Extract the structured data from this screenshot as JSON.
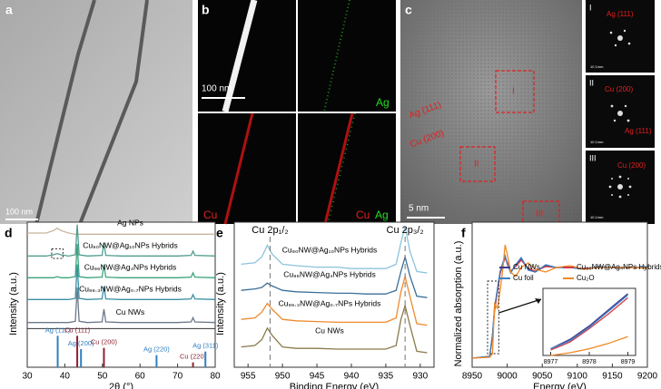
{
  "images": {
    "a": {
      "label": "a",
      "scale": "100 nm"
    },
    "b": {
      "label": "b",
      "scale": "100 nm",
      "channels": [
        "Ag",
        "Cu",
        "Cu",
        "Ag"
      ]
    },
    "c": {
      "label": "c",
      "scale": "5 nm",
      "annotations": [
        "Ag (111)",
        "Cu (200)"
      ],
      "regions": [
        "I",
        "II",
        "III"
      ],
      "insets": [
        {
          "roman": "I",
          "labels": [
            "Ag (111)"
          ],
          "scale": "10 1/nm"
        },
        {
          "roman": "II",
          "labels": [
            "Cu (200)",
            "Ag (111)"
          ],
          "scale": "10 1/nm"
        },
        {
          "roman": "III",
          "labels": [
            "Cu (200)"
          ],
          "scale": "10 1/nm"
        }
      ]
    }
  },
  "chart_data": [
    {
      "type": "line",
      "panel": "d",
      "x_label": "2θ (°)",
      "y_label": "Intensity (a.u.)",
      "xlim": [
        30,
        80
      ],
      "xticks": [
        30,
        40,
        50,
        60,
        70,
        80
      ],
      "ylim": [
        0,
        12
      ],
      "x": [
        30,
        35,
        37,
        38,
        39,
        41,
        42.8,
        43.3,
        43.8,
        46,
        49.9,
        50.4,
        50.9,
        55,
        60,
        65,
        70,
        73.6,
        74.1,
        74.6,
        80
      ],
      "series": [
        {
          "name": "Ag NPs",
          "color": "#c9b59c",
          "values": [
            11.1,
            11.1,
            11.3,
            11.5,
            11.3,
            11.1,
            11.0,
            11.0,
            11.0,
            11.0,
            11.0,
            11.0,
            11.0,
            11.0,
            11.0,
            11.0,
            11.0,
            11.0,
            11.0,
            11.0,
            11.0
          ]
        },
        {
          "name": "Cu₉₀NW@Ag₁₀NPs Hybrids",
          "color": "#4f9c8e",
          "values": [
            9.2,
            9.2,
            9.3,
            9.4,
            9.3,
            9.2,
            9.3,
            11.8,
            9.3,
            9.2,
            9.25,
            10.3,
            9.25,
            9.2,
            9.2,
            9.2,
            9.2,
            9.25,
            9.6,
            9.25,
            9.2
          ]
        },
        {
          "name": "Cu₉₆NW@Ag₄NPs Hybrids",
          "color": "#3aa37a",
          "values": [
            7.4,
            7.4,
            7.4,
            7.5,
            7.4,
            7.4,
            7.5,
            10.2,
            7.5,
            7.4,
            7.45,
            8.5,
            7.45,
            7.4,
            7.4,
            7.4,
            7.4,
            7.45,
            7.8,
            7.45,
            7.4
          ]
        },
        {
          "name": "Cu₉₉.₃NW@Ag₀.₇NPs Hybrids",
          "color": "#3a8fa3",
          "values": [
            5.6,
            5.6,
            5.6,
            5.6,
            5.6,
            5.6,
            5.7,
            8.5,
            5.7,
            5.6,
            5.65,
            6.7,
            5.65,
            5.6,
            5.6,
            5.6,
            5.6,
            5.65,
            6.0,
            5.65,
            5.6
          ]
        },
        {
          "name": "Cu NWs",
          "color": "#6b7889",
          "values": [
            3.7,
            3.7,
            3.7,
            3.7,
            3.7,
            3.7,
            3.8,
            6.6,
            3.8,
            3.7,
            3.75,
            4.8,
            3.75,
            3.7,
            3.7,
            3.7,
            3.7,
            3.75,
            4.1,
            3.75,
            3.7
          ]
        }
      ],
      "references": [
        {
          "label": "Ag (111)",
          "x": 38.1,
          "height": 2.6,
          "color": "#2f7fc0"
        },
        {
          "label": "Cu (111)",
          "x": 43.3,
          "height": 2.6,
          "color": "#8b2332"
        },
        {
          "label": "Ag (200)",
          "x": 44.3,
          "height": 1.5,
          "color": "#2f7fc0"
        },
        {
          "label": "Cu (200)",
          "x": 50.4,
          "height": 1.6,
          "color": "#8b2332"
        },
        {
          "label": "Ag (220)",
          "x": 64.4,
          "height": 1.0,
          "color": "#2f7fc0"
        },
        {
          "label": "Cu (220)",
          "x": 74.1,
          "height": 0.4,
          "color": "#8b2332"
        },
        {
          "label": "Ag (311)",
          "x": 77.4,
          "height": 1.3,
          "color": "#2f7fc0"
        }
      ]
    },
    {
      "type": "line",
      "panel": "e",
      "x_label": "Binding Energy (eV)",
      "y_label": "Intensity (a.u.)",
      "xlim": [
        957,
        928
      ],
      "xticks": [
        955,
        950,
        945,
        940,
        935,
        930
      ],
      "ylim": [
        0,
        10
      ],
      "x": [
        956,
        954,
        953,
        952.2,
        951.5,
        950,
        948,
        945,
        942,
        940,
        938,
        935,
        933.5,
        932.8,
        932.2,
        931.5,
        930.5,
        929
      ],
      "annotations": [
        {
          "text": "Cu 2p₁/₂",
          "x": 951.8
        },
        {
          "text": "Cu 2p₃/₂",
          "x": 932.2
        }
      ],
      "series": [
        {
          "name": "Cu₉₀NW@Ag₁₀NPs Hybrids",
          "color": "#8cc3dc",
          "values": [
            7.1,
            7.2,
            7.6,
            8.4,
            7.8,
            7.1,
            7.0,
            6.9,
            6.9,
            6.8,
            6.8,
            6.8,
            7.1,
            8.6,
            9.7,
            8.0,
            6.6,
            6.5
          ]
        },
        {
          "name": "Cu₉₆NW@Ag₄NPs Hybrids",
          "color": "#3b6f99",
          "values": [
            5.3,
            5.4,
            5.5,
            5.8,
            5.6,
            5.3,
            5.2,
            5.15,
            5.1,
            5.1,
            5.05,
            5.05,
            5.3,
            6.6,
            7.6,
            6.3,
            4.9,
            4.8
          ]
        },
        {
          "name": "Cu₉₉.₃NW@Ag₀.₇NPs Hybrids",
          "color": "#ef8a2e",
          "values": [
            3.3,
            3.4,
            3.8,
            4.4,
            4.0,
            3.3,
            3.2,
            3.15,
            3.1,
            3.1,
            3.1,
            3.1,
            3.4,
            5.2,
            6.25,
            4.9,
            3.0,
            2.9
          ]
        },
        {
          "name": "Cu NWs",
          "color": "#8a7a4a",
          "values": [
            1.4,
            1.5,
            1.9,
            2.7,
            2.2,
            1.4,
            1.3,
            1.3,
            1.25,
            1.25,
            1.25,
            1.25,
            1.5,
            3.3,
            4.25,
            2.9,
            1.1,
            1.0
          ]
        }
      ]
    },
    {
      "type": "line",
      "panel": "f",
      "x_label": "Energy (eV)",
      "y_label": "Normalized absorption (a.u.)",
      "xlim": [
        8950,
        9200
      ],
      "xticks": [
        8950,
        9000,
        9050,
        9100,
        9150,
        9200
      ],
      "ylim": [
        -0.1,
        1.5
      ],
      "legend": "upper center",
      "x": [
        8950,
        8975,
        8979,
        8982,
        8986,
        8990,
        8994,
        8997,
        9000,
        9005,
        9012,
        9020,
        9030,
        9040,
        9055,
        9070,
        9090,
        9110,
        9130,
        9150,
        9175,
        9200
      ],
      "series": [
        {
          "name": "Cu NWs",
          "color": "#3c3b8e",
          "values": [
            0,
            0.02,
            0.25,
            0.55,
            0.75,
            0.95,
            1.05,
            1.12,
            1.05,
            0.95,
            1.02,
            1.1,
            0.98,
            0.95,
            1.02,
            1.0,
            1.0,
            0.98,
            1.01,
            1.0,
            1.0,
            1.0
          ]
        },
        {
          "name": "Cu₉₆NW@Ag₄NPs Hybrids",
          "color": "#d4384a",
          "values": [
            0,
            0.02,
            0.23,
            0.52,
            0.73,
            0.93,
            1.04,
            1.1,
            1.06,
            0.96,
            1.01,
            1.08,
            0.99,
            0.96,
            1.01,
            1.0,
            1.0,
            0.99,
            1.0,
            1.0,
            1.0,
            1.0
          ]
        },
        {
          "name": "Cu foil",
          "color": "#3d7fc1",
          "values": [
            0,
            0.02,
            0.26,
            0.56,
            0.76,
            0.96,
            1.06,
            1.13,
            1.04,
            0.94,
            1.03,
            1.11,
            0.97,
            0.95,
            1.03,
            1.0,
            1.0,
            0.98,
            1.01,
            1.0,
            1.0,
            1.0
          ]
        },
        {
          "name": "Cu₂O",
          "color": "#f08a24",
          "values": [
            0,
            0.01,
            0.05,
            0.6,
            0.55,
            0.75,
            1.0,
            1.25,
            1.15,
            0.95,
            0.9,
            1.0,
            1.05,
            0.98,
            0.95,
            1.0,
            1.02,
            0.98,
            1.0,
            1.0,
            1.0,
            0.99
          ]
        }
      ]
    },
    {
      "type": "line",
      "xlim": [
        8976.8,
        8979.2
      ],
      "xticks": [
        8977,
        8978,
        8979
      ],
      "ylim": [
        0,
        0.5
      ],
      "x": [
        8977,
        8977.5,
        8978,
        8978.5,
        8979
      ],
      "series": [
        {
          "color": "#3c3b8e",
          "values": [
            0.05,
            0.12,
            0.22,
            0.34,
            0.46
          ]
        },
        {
          "color": "#d4384a",
          "values": [
            0.04,
            0.1,
            0.2,
            0.31,
            0.43
          ]
        },
        {
          "color": "#3d7fc1",
          "values": [
            0.05,
            0.11,
            0.21,
            0.33,
            0.45
          ]
        },
        {
          "color": "#f08a24",
          "values": [
            0,
            0.02,
            0.05,
            0.09,
            0.14
          ]
        }
      ]
    }
  ]
}
